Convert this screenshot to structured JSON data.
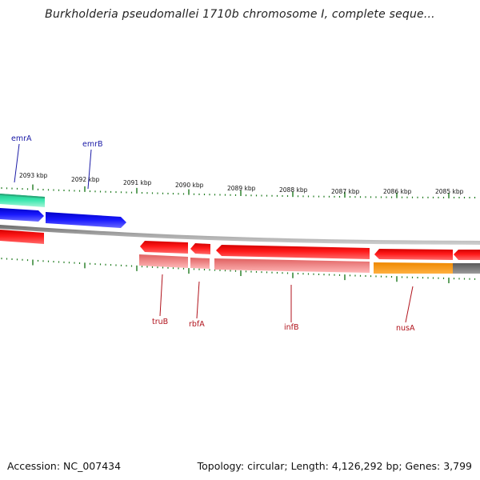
{
  "title": "Burkholderia pseudomallei 1710b chromosome I, complete seque...",
  "footer": {
    "accession": "Accession: NC_007434",
    "stats": "Topology: circular; Length: 4,126,292 bp; Genes: 3,799"
  },
  "scale_labels": [
    "2093 kbp",
    "2092 kbp",
    "2091 kbp",
    "2090 kbp",
    "2089 kbp",
    "2088 kbp",
    "2087 kbp",
    "2086 kbp",
    "2085 kbp"
  ],
  "gene_labels": {
    "top": [
      "emrA",
      "emrB"
    ],
    "bottom": [
      "truB",
      "rbfA",
      "infB",
      "nusA"
    ]
  },
  "colors": {
    "label_top": "#1a1aa6",
    "label_bottom": "#b0121b",
    "tick": "#1e7a1e",
    "backbone": "#8c8c8c",
    "gene_red": "#ff0000",
    "gene_blue": "#1414ff",
    "gene_teal": "#2fe0a0",
    "cog_pink": "#f08080",
    "cog_orange": "#ff9900",
    "cog_gray": "#6e6e6e"
  }
}
